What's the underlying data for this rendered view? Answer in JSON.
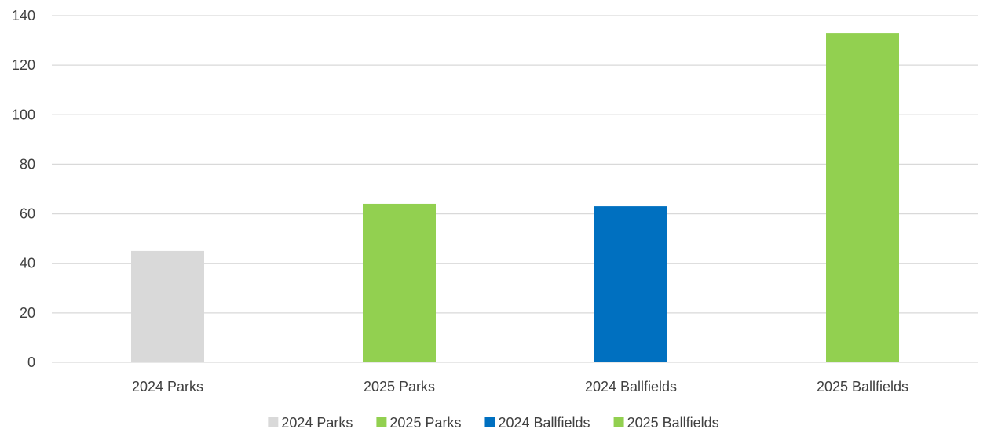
{
  "chart_data": {
    "type": "bar",
    "title": "",
    "xlabel": "",
    "ylabel": "",
    "categories": [
      "2024 Parks",
      "2025 Parks",
      "2024 Ballfields",
      "2025 Ballfields"
    ],
    "values": [
      45,
      64,
      63,
      133
    ],
    "colors": [
      "#d9d9d9",
      "#92d050",
      "#0070c0",
      "#92d050"
    ],
    "ylim": [
      0,
      140
    ],
    "yticks": [
      0,
      20,
      40,
      60,
      80,
      100,
      120,
      140
    ],
    "grid": true,
    "legend": {
      "placement": "bottom",
      "entries": [
        {
          "label": "2024 Parks",
          "color": "#d9d9d9"
        },
        {
          "label": "2025 Parks",
          "color": "#92d050"
        },
        {
          "label": "2024 Ballfields",
          "color": "#0070c0"
        },
        {
          "label": "2025 Ballfields",
          "color": "#92d050"
        }
      ]
    },
    "gridline_color": "#d9d9d9"
  }
}
